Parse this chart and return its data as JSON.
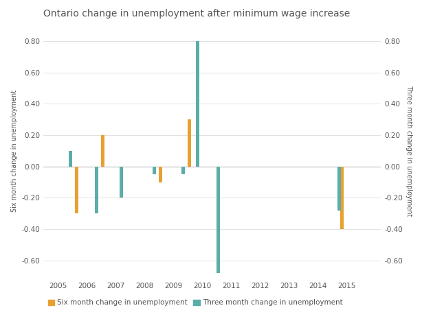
{
  "title": "Ontario change in unemployment after minimum wage increase",
  "ylabel_left": "Six month change in unemployment",
  "ylabel_right": "Three month change in unemployment",
  "xlim": [
    2004.5,
    2016.2
  ],
  "ylim": [
    -0.72,
    0.92
  ],
  "yticks": [
    -0.6,
    -0.4,
    -0.2,
    0.0,
    0.2,
    0.4,
    0.6,
    0.8
  ],
  "xticks": [
    2005,
    2006,
    2007,
    2008,
    2009,
    2010,
    2011,
    2012,
    2013,
    2014,
    2015
  ],
  "six_month": {
    "years": [
      2005.65,
      2006.55,
      2008.55,
      2009.55,
      2014.85
    ],
    "values": [
      -0.3,
      0.2,
      -0.1,
      0.3,
      -0.4
    ]
  },
  "three_month": {
    "years": [
      2005.45,
      2006.35,
      2007.2,
      2008.35,
      2009.35,
      2009.85,
      2010.55,
      2014.75
    ],
    "values": [
      0.1,
      -0.3,
      -0.2,
      -0.05,
      -0.05,
      0.8,
      -0.68,
      -0.28
    ]
  },
  "six_month_color": "#E8A030",
  "three_month_color": "#5BADA8",
  "bar_width": 0.12,
  "background_color": "#FFFFFF",
  "grid_color": "#DDDDDD",
  "axis_color": "#BBBBBB",
  "text_color": "#555555",
  "legend_six": "Six month change in unemployment",
  "legend_three": "Three month change in unemployment",
  "title_fontsize": 10,
  "label_fontsize": 7,
  "tick_fontsize": 7.5,
  "legend_fontsize": 7.5
}
